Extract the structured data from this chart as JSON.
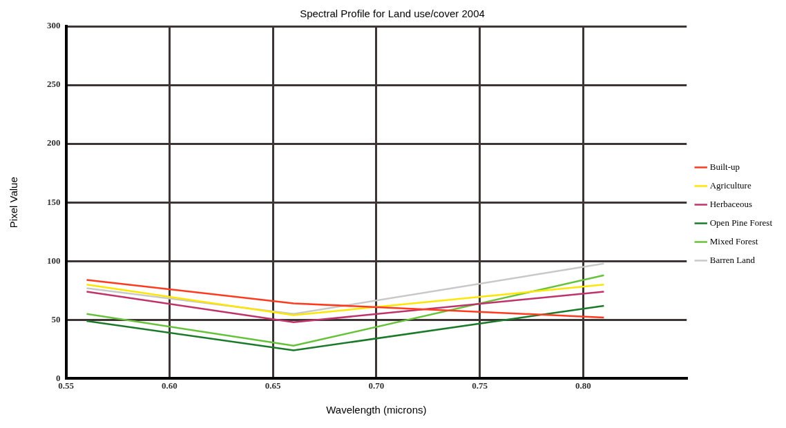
{
  "chart_data": {
    "type": "line",
    "title": "Spectral Profile for Land use/cover 2004",
    "xlabel": "Wavelength (microns)",
    "ylabel": "Pixel Value",
    "x": [
      0.56,
      0.66,
      0.81
    ],
    "series": [
      {
        "name": "Built-up",
        "color": "#ff3a1f",
        "values": [
          84,
          64,
          52
        ]
      },
      {
        "name": "Agriculture",
        "color": "#ffe600",
        "values": [
          80,
          54,
          80
        ]
      },
      {
        "name": "Herbaceous",
        "color": "#c0326a",
        "values": [
          74,
          48,
          74
        ]
      },
      {
        "name": "Open Pine Forest",
        "color": "#1a7a2a",
        "values": [
          49,
          24,
          62
        ]
      },
      {
        "name": "Mixed Forest",
        "color": "#66c23a",
        "values": [
          55,
          28,
          88
        ]
      },
      {
        "name": "Barren Land",
        "color": "#c8c8c8",
        "values": [
          77,
          55,
          98
        ]
      }
    ],
    "xlim": [
      0.55,
      0.85
    ],
    "xticks": [
      0.55,
      {
        "value": 0.6,
        "label": "0.60"
      },
      0.65,
      {
        "value": 0.7,
        "label": "0.70"
      },
      0.75,
      {
        "value": 0.8,
        "label": "0.80"
      }
    ],
    "ylim": [
      0,
      300
    ],
    "yticks": [
      0,
      50,
      100,
      150,
      200,
      250,
      300
    ],
    "grid": true,
    "legend": "right",
    "marker": "none",
    "line_style": "solid"
  }
}
